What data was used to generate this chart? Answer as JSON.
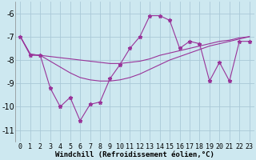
{
  "x": [
    0,
    1,
    2,
    3,
    4,
    5,
    6,
    7,
    8,
    9,
    10,
    11,
    12,
    13,
    14,
    15,
    16,
    17,
    18,
    19,
    20,
    21,
    22,
    23
  ],
  "line1": [
    -7.0,
    -7.8,
    -7.8,
    -9.2,
    -10.0,
    -9.6,
    -10.6,
    -9.9,
    -9.8,
    -8.8,
    -8.2,
    -7.5,
    -7.0,
    -6.1,
    -6.1,
    -6.3,
    -7.5,
    -7.2,
    -7.3,
    -8.9,
    -8.1,
    -8.9,
    -7.2,
    -7.2
  ],
  "line2": [
    -7.0,
    -7.75,
    -7.8,
    -7.85,
    -7.9,
    -7.95,
    -8.0,
    -8.05,
    -8.1,
    -8.15,
    -8.15,
    -8.1,
    -8.05,
    -7.95,
    -7.8,
    -7.7,
    -7.6,
    -7.5,
    -7.4,
    -7.3,
    -7.2,
    -7.15,
    -7.05,
    -7.0
  ],
  "line3": [
    -7.0,
    -7.75,
    -7.8,
    -8.05,
    -8.3,
    -8.55,
    -8.75,
    -8.85,
    -8.9,
    -8.9,
    -8.85,
    -8.75,
    -8.6,
    -8.4,
    -8.2,
    -8.0,
    -7.85,
    -7.7,
    -7.55,
    -7.4,
    -7.3,
    -7.2,
    -7.1,
    -7.0
  ],
  "bg_color": "#cde8f0",
  "grid_color": "#aac8d8",
  "line_color": "#993399",
  "xlabel": "Windchill (Refroidissement éolien,°C)",
  "ylim": [
    -11.5,
    -5.5
  ],
  "xlim": [
    -0.5,
    23.5
  ],
  "yticks": [
    -11,
    -10,
    -9,
    -8,
    -7,
    -6
  ],
  "xticks": [
    0,
    1,
    2,
    3,
    4,
    5,
    6,
    7,
    8,
    9,
    10,
    11,
    12,
    13,
    14,
    15,
    16,
    17,
    18,
    19,
    20,
    21,
    22,
    23
  ],
  "title_fontsize": 7,
  "tick_fontsize": 6,
  "xlabel_fontsize": 6.5
}
